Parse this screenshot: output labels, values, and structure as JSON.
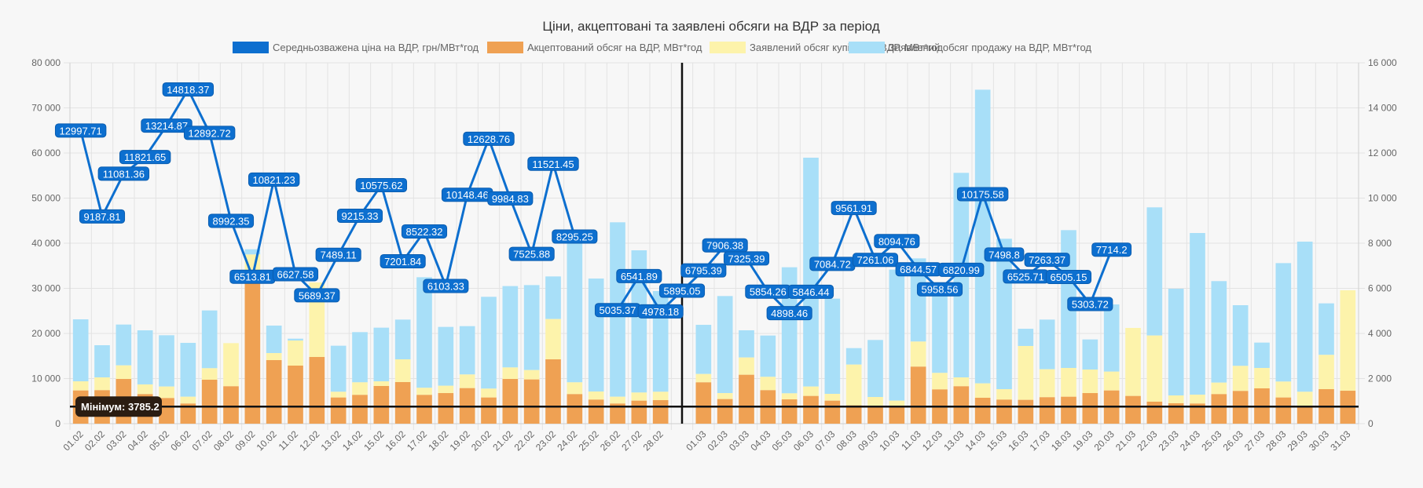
{
  "chart_data": {
    "type": "bar",
    "title": "Ціни, акцептовані та заявлені обсяги на ВДР за період",
    "legend_position": "top",
    "legend": [
      {
        "label": "Середньозважена ціна на ВДР, грн/МВт*год",
        "color": "#0d6fcf"
      },
      {
        "label": "Акцептований обсяг на ВДР, МВт*год",
        "color": "#efa153"
      },
      {
        "label": "Заявлений обсяг купівлі на ВДР, МВт*год",
        "color": "#fdf3ab"
      },
      {
        "label": "Заявлений обсяг продажу на ВДР, МВт*год",
        "color": "#a8dff8"
      }
    ],
    "categories": [
      "01.02",
      "02.02",
      "03.02",
      "04.02",
      "05.02",
      "06.02",
      "07.02",
      "08.02",
      "09.02",
      "10.02",
      "11.02",
      "12.02",
      "13.02",
      "14.02",
      "15.02",
      "16.02",
      "17.02",
      "18.02",
      "19.02",
      "20.02",
      "21.02",
      "22.02",
      "23.02",
      "24.02",
      "25.02",
      "26.02",
      "27.02",
      "28.02",
      "",
      "01.03",
      "02.03",
      "03.03",
      "04.03",
      "05.03",
      "06.03",
      "07.03",
      "08.03",
      "09.03",
      "10.03",
      "11.03",
      "12.03",
      "13.03",
      "14.03",
      "15.03",
      "16.03",
      "17.03",
      "18.03",
      "19.03",
      "20.03",
      "21.03",
      "22.03",
      "23.03",
      "24.03",
      "25.03",
      "26.03",
      "27.03",
      "28.03",
      "29.03",
      "30.03",
      "31.03"
    ],
    "left_axis": {
      "label": "",
      "min": 0,
      "max": 80000,
      "ticks": [
        "0",
        "10 000",
        "20 000",
        "30 000",
        "40 000",
        "50 000",
        "60 000",
        "70 000",
        "80 000"
      ]
    },
    "right_axis": {
      "label": "",
      "min": 0,
      "max": 16000,
      "ticks": [
        "0",
        "2 000",
        "4 000",
        "6 000",
        "8 000",
        "10 000",
        "12 000",
        "14 000",
        "16 000"
      ]
    },
    "grid": true,
    "series": [
      {
        "name": "Середньозважена ціна на ВДР, грн/МВт*год",
        "type": "line",
        "axis": "right",
        "color": "#0d6fcf",
        "values": [
          12997.71,
          9187.81,
          11081.36,
          11821.65,
          13214.87,
          14818.37,
          12892.72,
          8992.35,
          6513.81,
          10821.23,
          6627.58,
          5689.37,
          7489.11,
          9215.33,
          10575.62,
          7201.84,
          8522.32,
          6103.33,
          10148.46,
          12628.76,
          9984.83,
          7525.88,
          11521.45,
          8295.25,
          null,
          5035.37,
          6541.89,
          4978.18,
          5895.05,
          6795.39,
          7906.38,
          7325.39,
          5854.26,
          4898.46,
          5846.44,
          7084.72,
          9561.91,
          7261.06,
          8094.76,
          6844.57,
          5958.56,
          6820.99,
          10175.58,
          7498.8,
          6525.71,
          7263.37,
          6505.15,
          5303.72,
          7714.2,
          null,
          null,
          null,
          null,
          null,
          null,
          null,
          null,
          null,
          null,
          null
        ]
      },
      {
        "name": "Акцептований обсяг на ВДР, МВт*год",
        "type": "bar",
        "axis": "left",
        "color": "#efa153",
        "values": [
          7360,
          7420,
          9910,
          6550,
          5680,
          4460,
          9740,
          8290,
          33040,
          14090,
          12870,
          14780,
          5800,
          6380,
          8350,
          9220,
          6380,
          6780,
          7880,
          5800,
          9910,
          9800,
          14260,
          6550,
          5330,
          4460,
          5100,
          5220,
          null,
          9160,
          5450,
          10840,
          7420,
          5390,
          6140,
          5100,
          4060,
          3940,
          3940,
          12640,
          7590,
          8290,
          5740,
          5330,
          5280,
          5860,
          5970,
          6780,
          7360,
          6140,
          4870,
          4520,
          4460,
          6550,
          7250,
          7830,
          5800,
          3785.2,
          7650,
          7300
        ]
      },
      {
        "name": "Заявлений обсяг купівлі на ВДР, МВт*год",
        "type": "bar",
        "axis": "left",
        "color": "#fdf3ab",
        "stacked_total_values": [
          9390,
          10260,
          12920,
          8700,
          8230,
          5970,
          12290,
          17850,
          37500,
          15650,
          18430,
          31300,
          7070,
          9160,
          9390,
          14260,
          7950,
          8410,
          10900,
          7770,
          12460,
          11880,
          23190,
          9160,
          7130,
          5970,
          6900,
          7070,
          null,
          11010,
          6780,
          14670,
          10380,
          6720,
          8230,
          6610,
          13100,
          5910,
          5100,
          18200,
          11250,
          10260,
          8930,
          7650,
          17220,
          12060,
          12350,
          12000,
          11540,
          21220,
          19540,
          6260,
          6430,
          9100,
          12810,
          12350,
          9330,
          7070,
          15250,
          29570
        ]
      },
      {
        "name": "Заявлений обсяг продажу на ВДР, МВт*год",
        "type": "bar",
        "axis": "left",
        "color": "#a8dff8",
        "stacked_total_values": [
          23130,
          17390,
          21970,
          20690,
          19600,
          17910,
          25100,
          17850,
          38660,
          21740,
          18840,
          31300,
          17280,
          20290,
          21280,
          23070,
          32460,
          21450,
          21620,
          28120,
          30500,
          30720,
          32640,
          40000,
          32170,
          44640,
          38430,
          29390,
          null,
          21910,
          28290,
          20700,
          19540,
          34670,
          58960,
          27710,
          16750,
          18550,
          34150,
          36640,
          29000,
          55600,
          74030,
          40990,
          21040,
          23070,
          42900,
          18670,
          26430,
          21220,
          47950,
          29910,
          42260,
          31600,
          26260,
          17970,
          35590,
          40350,
          26670,
          29570
        ]
      }
    ],
    "annotations": [
      {
        "type": "horizontal-line",
        "axis": "left",
        "value": 3785.2,
        "label": "Мінімум: 3785.2"
      },
      {
        "type": "vertical-line",
        "between": [
          "28.02",
          "01.03"
        ]
      }
    ]
  }
}
